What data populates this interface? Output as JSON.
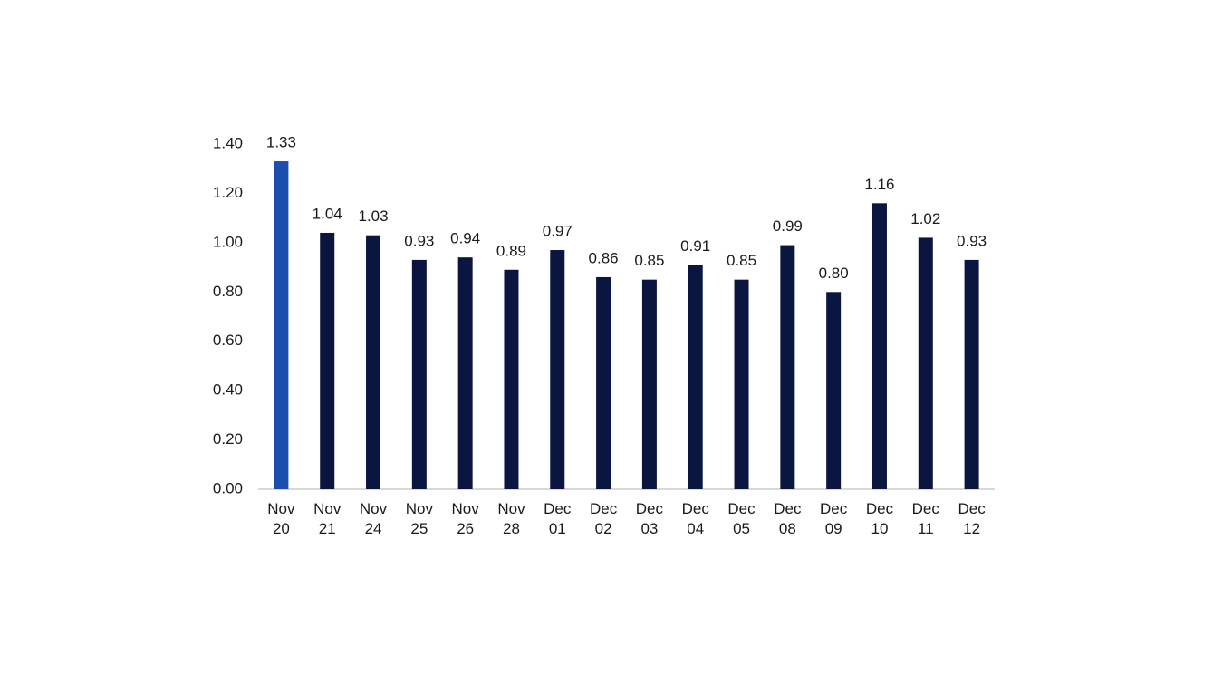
{
  "chart_data": {
    "type": "bar",
    "categories": [
      "Nov 20",
      "Nov 21",
      "Nov 24",
      "Nov 25",
      "Nov 26",
      "Nov 28",
      "Dec 01",
      "Dec 02",
      "Dec 03",
      "Dec 04",
      "Dec 05",
      "Dec 08",
      "Dec 09",
      "Dec 10",
      "Dec 11",
      "Dec 12"
    ],
    "values": [
      1.33,
      1.04,
      1.03,
      0.93,
      0.94,
      0.89,
      0.97,
      0.86,
      0.85,
      0.91,
      0.85,
      0.99,
      0.8,
      1.16,
      1.02,
      0.93
    ],
    "value_labels": [
      "1.33",
      "1.04",
      "1.03",
      "0.93",
      "0.94",
      "0.89",
      "0.97",
      "0.86",
      "0.85",
      "0.91",
      "0.85",
      "0.99",
      "0.80",
      "1.16",
      "1.02",
      "0.93"
    ],
    "colors": [
      "#1a4fad",
      "#0b1640",
      "#0b1640",
      "#0b1640",
      "#0b1640",
      "#0b1640",
      "#0b1640",
      "#0b1640",
      "#0b1640",
      "#0b1640",
      "#0b1640",
      "#0b1640",
      "#0b1640",
      "#0b1640",
      "#0b1640",
      "#0b1640"
    ],
    "ylim": [
      0,
      1.4
    ],
    "yticks": [
      {
        "value": 0,
        "label": "0.00"
      },
      {
        "value": 0.2,
        "label": "0.20"
      },
      {
        "value": 0.4,
        "label": "0.40"
      },
      {
        "value": 0.6,
        "label": "0.60"
      },
      {
        "value": 0.8,
        "label": "0.80"
      },
      {
        "value": 1,
        "label": "1.00"
      },
      {
        "value": 1.2,
        "label": "1.20"
      },
      {
        "value": 1.4,
        "label": "1.40"
      }
    ],
    "grid": false
  }
}
